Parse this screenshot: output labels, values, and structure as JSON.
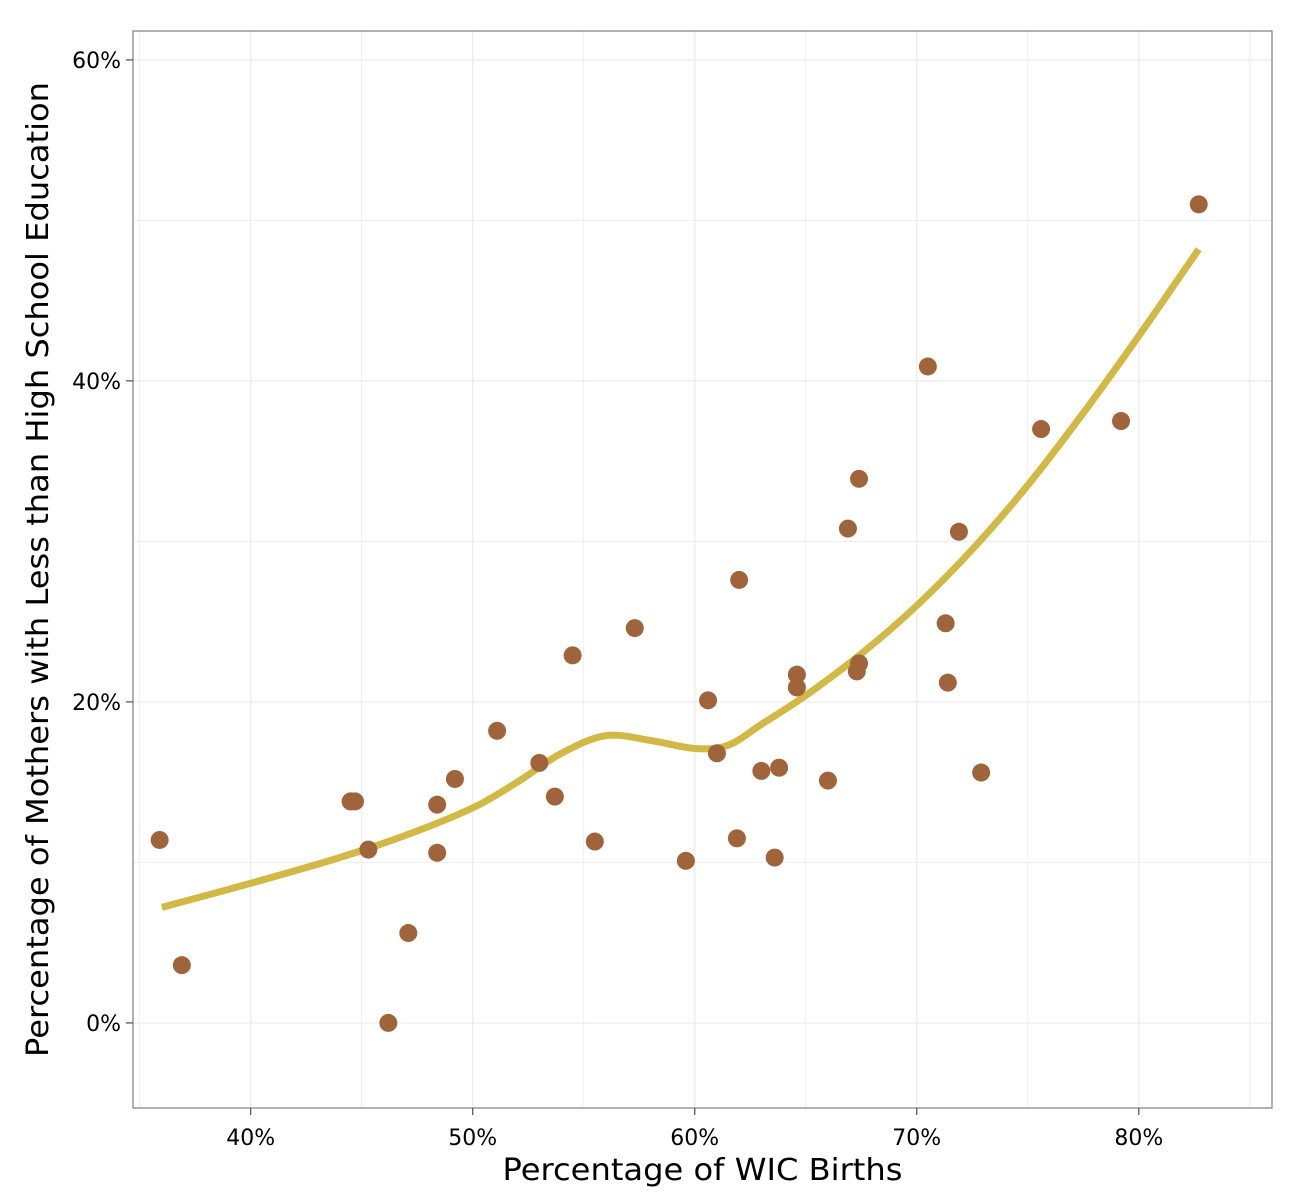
{
  "chart_data": {
    "type": "scatter",
    "title": "",
    "xlabel": "Percentage of WIC Births",
    "ylabel": "Percentage of Mothers with Less than High School Education",
    "xlim": [
      34.7,
      86.0
    ],
    "ylim": [
      -5.3,
      61.8
    ],
    "grid": true,
    "legend": "none",
    "colors": {
      "points": "#a0643a",
      "smooth_line": "#d2b945",
      "grid": "#ebebeb",
      "panel_border": "#7f7f7f"
    },
    "x_ticks": [
      {
        "value": 40,
        "label": "40%"
      },
      {
        "value": 50,
        "label": "50%"
      },
      {
        "value": 60,
        "label": "60%"
      },
      {
        "value": 70,
        "label": "70%"
      },
      {
        "value": 80,
        "label": "80%"
      }
    ],
    "y_ticks": [
      {
        "value": 0,
        "label": "0%"
      },
      {
        "value": 20,
        "label": "20%"
      },
      {
        "value": 40,
        "label": "40%"
      },
      {
        "value": 60,
        "label": "60%"
      }
    ],
    "points": [
      {
        "x": 35.9,
        "y": 11.4
      },
      {
        "x": 36.9,
        "y": 3.6
      },
      {
        "x": 44.5,
        "y": 13.8
      },
      {
        "x": 44.7,
        "y": 13.8
      },
      {
        "x": 45.3,
        "y": 10.8
      },
      {
        "x": 46.2,
        "y": 0.0
      },
      {
        "x": 47.1,
        "y": 5.6
      },
      {
        "x": 48.4,
        "y": 13.6
      },
      {
        "x": 48.4,
        "y": 10.6
      },
      {
        "x": 49.2,
        "y": 15.2
      },
      {
        "x": 51.1,
        "y": 18.2
      },
      {
        "x": 53.0,
        "y": 16.2
      },
      {
        "x": 53.7,
        "y": 14.1
      },
      {
        "x": 54.5,
        "y": 22.9
      },
      {
        "x": 55.5,
        "y": 11.3
      },
      {
        "x": 57.3,
        "y": 24.6
      },
      {
        "x": 59.6,
        "y": 10.1
      },
      {
        "x": 60.6,
        "y": 20.1
      },
      {
        "x": 61.0,
        "y": 16.8
      },
      {
        "x": 61.9,
        "y": 11.5
      },
      {
        "x": 62.0,
        "y": 27.6
      },
      {
        "x": 63.0,
        "y": 15.7
      },
      {
        "x": 63.6,
        "y": 10.3
      },
      {
        "x": 63.8,
        "y": 15.9
      },
      {
        "x": 64.6,
        "y": 21.7
      },
      {
        "x": 64.6,
        "y": 20.9
      },
      {
        "x": 66.0,
        "y": 15.1
      },
      {
        "x": 66.9,
        "y": 30.8
      },
      {
        "x": 67.3,
        "y": 21.9
      },
      {
        "x": 67.4,
        "y": 22.4
      },
      {
        "x": 67.4,
        "y": 33.9
      },
      {
        "x": 70.5,
        "y": 40.9
      },
      {
        "x": 71.3,
        "y": 24.9
      },
      {
        "x": 71.4,
        "y": 21.2
      },
      {
        "x": 71.9,
        "y": 30.6
      },
      {
        "x": 72.9,
        "y": 15.6
      },
      {
        "x": 75.6,
        "y": 37.0
      },
      {
        "x": 79.2,
        "y": 37.5
      },
      {
        "x": 82.7,
        "y": 51.0
      }
    ],
    "smooth_line": [
      {
        "x": 36.0,
        "y": 7.2
      },
      {
        "x": 40.0,
        "y": 8.7
      },
      {
        "x": 44.0,
        "y": 10.3
      },
      {
        "x": 47.0,
        "y": 11.7
      },
      {
        "x": 50.0,
        "y": 13.4
      },
      {
        "x": 52.0,
        "y": 15.0
      },
      {
        "x": 54.0,
        "y": 16.8
      },
      {
        "x": 56.0,
        "y": 17.9
      },
      {
        "x": 58.0,
        "y": 17.6
      },
      {
        "x": 60.0,
        "y": 17.1
      },
      {
        "x": 61.5,
        "y": 17.3
      },
      {
        "x": 63.0,
        "y": 18.6
      },
      {
        "x": 65.0,
        "y": 20.4
      },
      {
        "x": 67.5,
        "y": 23.0
      },
      {
        "x": 70.0,
        "y": 26.0
      },
      {
        "x": 72.5,
        "y": 29.5
      },
      {
        "x": 75.0,
        "y": 33.5
      },
      {
        "x": 77.5,
        "y": 38.0
      },
      {
        "x": 80.0,
        "y": 42.8
      },
      {
        "x": 82.7,
        "y": 48.2
      }
    ]
  }
}
